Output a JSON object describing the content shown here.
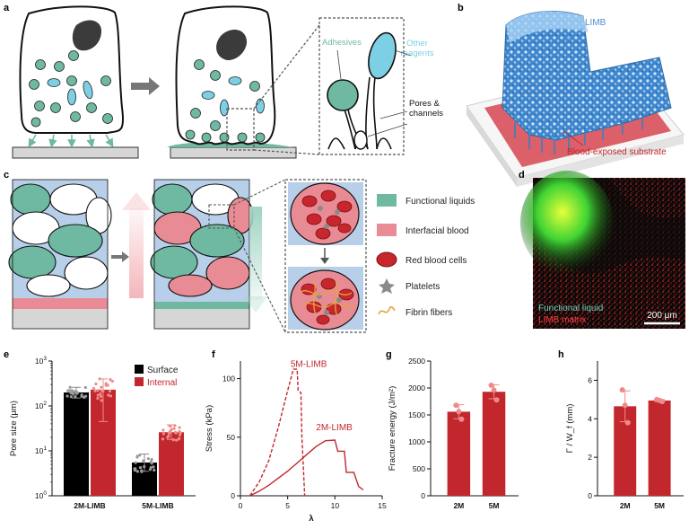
{
  "figure": {
    "panel_labels": [
      "a",
      "b",
      "c",
      "d",
      "e",
      "f",
      "g",
      "h"
    ],
    "colors": {
      "teal": "#6fb9a2",
      "light_blue": "#7ccfe4",
      "background_blue": "#b7cfe8",
      "pink": "#e98b94",
      "dark_red": "#b5262b",
      "red_plot": "#c1272d",
      "light_red_points": "#f08a8a",
      "gray": "#d6d6d6",
      "dark_cell": "#3b3b3b",
      "limb_blue": "#4a8fd0",
      "fibrin_orange": "#e6a33a"
    },
    "a": {
      "adhesives": "Adhesives",
      "other_reagents": "Other\nreagents",
      "pores_channels": "Pores &\nchannels"
    },
    "b": {
      "limb": "LIMB",
      "substrate": "Blood-exposed substrate"
    },
    "c": {
      "legend": [
        {
          "label": "Functional liquids",
          "icon": "teal-square-icon"
        },
        {
          "label": "Interfacial blood",
          "icon": "pink-square-icon"
        },
        {
          "label": "Red blood cells",
          "icon": "red-blood-cell-icon"
        },
        {
          "label": "Platelets",
          "icon": "platelet-icon"
        },
        {
          "label": "Fibrin fibers",
          "icon": "fibrin-fiber-icon"
        }
      ]
    },
    "d": {
      "label_green": "Functional liquid",
      "label_red": "LIMB matrix",
      "scale_bar": "200 μm"
    }
  },
  "chart_data": [
    {
      "panel": "e",
      "type": "bar",
      "ylabel": "Pore size (μm)",
      "yscale": "log",
      "ylim": [
        1,
        1000
      ],
      "yticks": [
        "10^0",
        "10^1",
        "10^2",
        "10^3"
      ],
      "categories": [
        "2M-LIMB",
        "5M-LIMB"
      ],
      "series": [
        {
          "name": "Surface",
          "color": "#000000",
          "values": [
            200,
            5.5
          ],
          "errors_low": [
            150,
            3.5
          ],
          "errors_high": [
            260,
            8.5
          ]
        },
        {
          "name": "Internal",
          "color": "#c1272d",
          "values": [
            230,
            26
          ],
          "errors_low": [
            45,
            18
          ],
          "errors_high": [
            400,
            38
          ]
        }
      ],
      "legend": "top-right"
    },
    {
      "panel": "f",
      "type": "line",
      "xlabel": "λ",
      "ylabel": "Stress (kPa)",
      "xlim": [
        0,
        15
      ],
      "ylim": [
        0,
        115
      ],
      "xticks": [
        0,
        5,
        10,
        15
      ],
      "yticks": [
        0,
        50,
        100
      ],
      "series": [
        {
          "name": "5M-LIMB",
          "style": "dashed",
          "points": [
            [
              1,
              0
            ],
            [
              2,
              12
            ],
            [
              3,
              30
            ],
            [
              4,
              58
            ],
            [
              5,
              90
            ],
            [
              5.6,
              108
            ],
            [
              6,
              108
            ],
            [
              6.1,
              90
            ],
            [
              6.4,
              88
            ],
            [
              6.5,
              50
            ],
            [
              6.6,
              35
            ],
            [
              6.8,
              0
            ]
          ]
        },
        {
          "name": "2M-LIMB",
          "style": "solid",
          "points": [
            [
              1,
              0
            ],
            [
              2,
              4
            ],
            [
              3,
              9
            ],
            [
              4,
              15
            ],
            [
              5,
              21
            ],
            [
              6,
              28
            ],
            [
              7,
              35
            ],
            [
              8,
              42
            ],
            [
              9,
              47
            ],
            [
              10,
              47.5
            ],
            [
              10.3,
              38
            ],
            [
              11,
              38
            ],
            [
              11.2,
              20
            ],
            [
              12,
              20
            ],
            [
              12.5,
              8
            ],
            [
              13,
              5
            ]
          ]
        }
      ]
    },
    {
      "panel": "g",
      "type": "bar",
      "ylabel": "Fracture energy (J/m²)",
      "ylim": [
        0,
        2500
      ],
      "yticks": [
        0,
        500,
        1000,
        1500,
        2000,
        2500
      ],
      "categories": [
        "2M",
        "5M"
      ],
      "values": [
        1560,
        1930
      ],
      "errors": [
        130,
        130
      ],
      "points": [
        [
          1680,
          1560,
          1420
        ],
        [
          2050,
          1960,
          1780
        ]
      ]
    },
    {
      "panel": "h",
      "type": "bar",
      "ylabel": "Γ / W_f (mm)",
      "ylim": [
        0,
        7
      ],
      "yticks": [
        0,
        2,
        4,
        6
      ],
      "categories": [
        "2M",
        "5M"
      ],
      "values": [
        4.65,
        4.95
      ],
      "errors": [
        0.8,
        0.05
      ],
      "points": [
        [
          5.5,
          4.7,
          3.8
        ],
        [
          5.0,
          4.95,
          4.9
        ]
      ]
    }
  ]
}
